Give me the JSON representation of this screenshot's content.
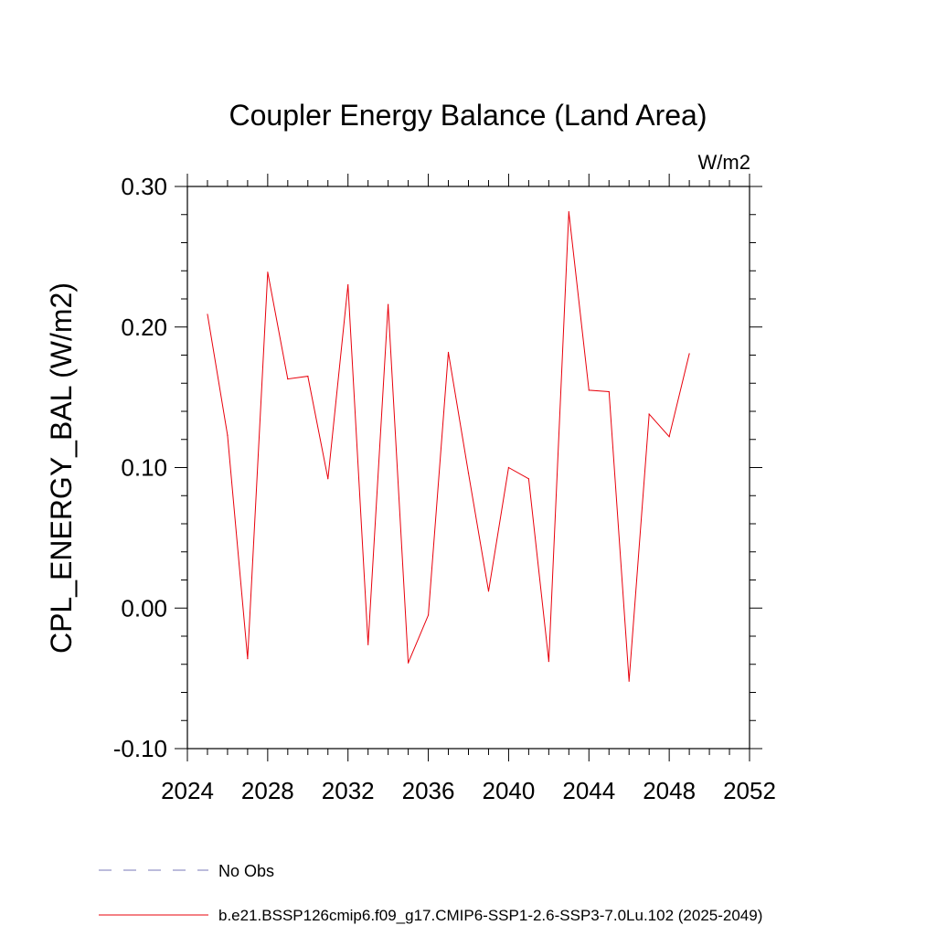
{
  "chart_data": {
    "type": "line",
    "title": "Coupler Energy Balance (Land Area)",
    "units_label": "W/m2",
    "ylabel": "CPL_ENERGY_BAL  (W/m2)",
    "xlabel": "",
    "xlim": [
      2024,
      2052
    ],
    "ylim": [
      -0.1,
      0.3
    ],
    "x_ticks": [
      2024,
      2028,
      2032,
      2036,
      2040,
      2044,
      2048,
      2052
    ],
    "y_ticks": [
      -0.1,
      0.0,
      0.1,
      0.2,
      0.3
    ],
    "y_tick_labels": [
      "-0.10",
      "0.00",
      "0.10",
      "0.20",
      "0.30"
    ],
    "grid": false,
    "legend_placement": "bottom",
    "series": [
      {
        "name": "b.e21.BSSP126cmip6.f09_g17.CMIP6-SSP1-2.6-SSP3-7.0Lu.102 (2025-2049)",
        "color": "#e8000b",
        "x": [
          2025,
          2026,
          2027,
          2028,
          2029,
          2030,
          2031,
          2032,
          2033,
          2034,
          2035,
          2036,
          2037,
          2038,
          2039,
          2040,
          2041,
          2042,
          2043,
          2044,
          2045,
          2046,
          2047,
          2048,
          2049
        ],
        "y": [
          0.209,
          0.123,
          -0.036,
          0.239,
          0.163,
          0.165,
          0.092,
          0.23,
          -0.026,
          0.216,
          -0.039,
          -0.005,
          0.182,
          0.096,
          0.012,
          0.1,
          0.092,
          -0.038,
          0.282,
          0.155,
          0.154,
          -0.052,
          0.138,
          0.122,
          0.181
        ]
      }
    ],
    "legend": [
      {
        "label": "No Obs",
        "color": "#7a7ab8",
        "dash": "dashed"
      },
      {
        "label": "b.e21.BSSP126cmip6.f09_g17.CMIP6-SSP1-2.6-SSP3-7.0Lu.102 (2025-2049)",
        "color": "#e8000b",
        "dash": "solid"
      }
    ]
  }
}
